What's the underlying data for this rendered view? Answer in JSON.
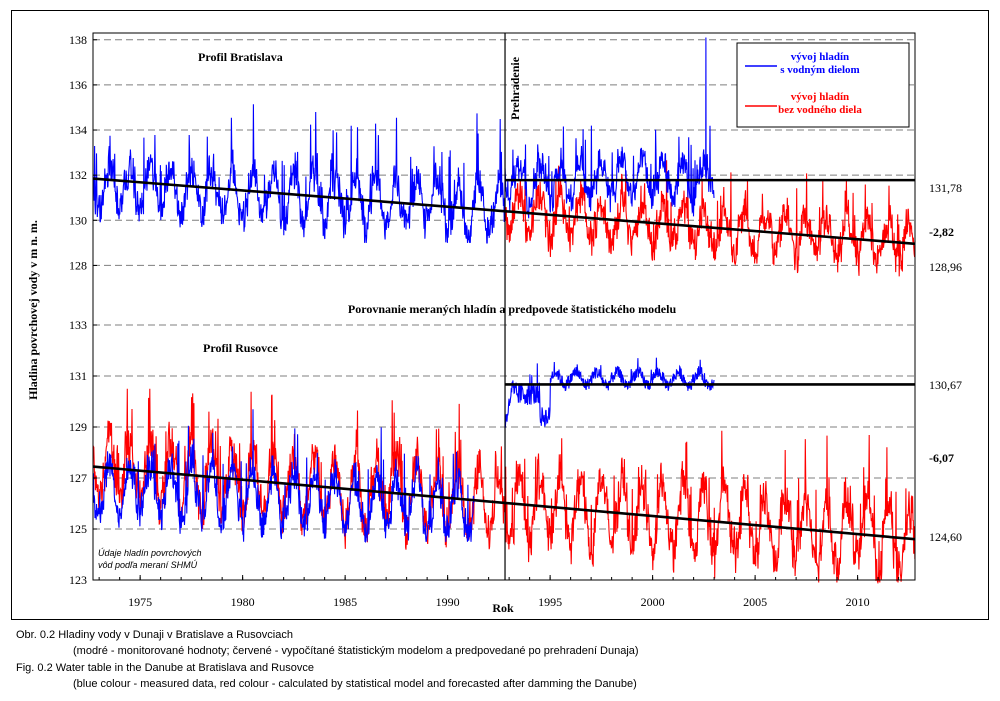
{
  "chart_data": {
    "type": "line",
    "title": "Porovnanie meraných hladín a predpovede štatistického modelu",
    "ylabel": "Hladina povrchovej vody v m n. m.",
    "xlabel": "Rok",
    "x_ticks": [
      "1975",
      "1980",
      "1985",
      "1990",
      "1995",
      "2000",
      "2005",
      "2010"
    ],
    "xlim": [
      1972.7,
      2012.8
    ],
    "legend": {
      "placement": "top-right",
      "items": [
        {
          "label": "vývoj hladín s vodným dielom",
          "label_line1": "vývoj hladín",
          "label_line2": "s vodným dielom",
          "color": "#0000ff"
        },
        {
          "label": "vývoj hladín bez vodného diela",
          "label_line1": "vývoj hladín",
          "label_line2": "bez vodného diela",
          "color": "#ff0000"
        }
      ]
    },
    "event": {
      "label": "Prehradenie",
      "year": 1992.8
    },
    "panels": [
      {
        "name": "Profil Bratislava",
        "ylim": [
          127,
          138.3
        ],
        "y_ticks": [
          "138",
          "136",
          "134",
          "132",
          "130",
          "128"
        ],
        "measured": {
          "color": "#0000ff",
          "start": 1972.7,
          "end": 2003.0,
          "base_pre": 131.5,
          "base_post": 131.8,
          "min": 129.0,
          "max": 138.1,
          "peak_year": 2002.6
        },
        "model": {
          "color": "#ff0000",
          "start": 1992.8,
          "end": 2012.8,
          "trend_start": 130.4,
          "trend_end": 128.96,
          "min": 127.4,
          "max": 134.0
        },
        "trend_line": {
          "start_year": 1972.7,
          "start_value": 131.85,
          "end_year": 2012.8,
          "end_value": 128.96
        },
        "level_line": {
          "start_year": 1992.8,
          "value": 131.78
        },
        "annotations": [
          "131,78",
          "-2,82",
          "128,96"
        ]
      },
      {
        "name": "Profil Rusovce",
        "ylim": [
          123,
          133
        ],
        "y_ticks": [
          "133",
          "131",
          "129",
          "127",
          "125",
          "123"
        ],
        "measured": {
          "color": "#0000ff",
          "start": 1972.7,
          "end": 1991.3,
          "base": 126.6,
          "min": 124.5,
          "max": 131.7
        },
        "measured_post": {
          "color": "#0000ff",
          "start": 1992.8,
          "end": 2003.0,
          "level": 130.9,
          "min": 128.8,
          "max": 131.9
        },
        "model": {
          "color": "#ff0000",
          "start": 1972.7,
          "end": 2012.8,
          "min": 122.9,
          "max": 130.5
        },
        "trend_line": {
          "start_year": 1972.7,
          "start_value": 127.45,
          "end_year": 2012.8,
          "end_value": 124.6
        },
        "level_line": {
          "start_year": 1992.8,
          "value": 130.67
        },
        "annotations": [
          "130,67",
          "-6,07",
          "124,60"
        ]
      }
    ],
    "note": "Údaje hladín povrchových vôd podľa meraní SHMÚ"
  },
  "captions": {
    "cz_1": "Obr. 0.2   Hladiny vody v Dunaji v Bratislave a Rusovciach",
    "cz_2": "(modré - monitorované hodnoty; červené - vypočítané štatistickým modelom a predpovedané po prehradení Dunaja)",
    "en_1": "Fig. 0.2   Water table in the Danube at Bratislava and Rusovce",
    "en_2": "(blue colour - measured data, red colour - calculated by statistical model and forecasted after damming the Danube)"
  }
}
